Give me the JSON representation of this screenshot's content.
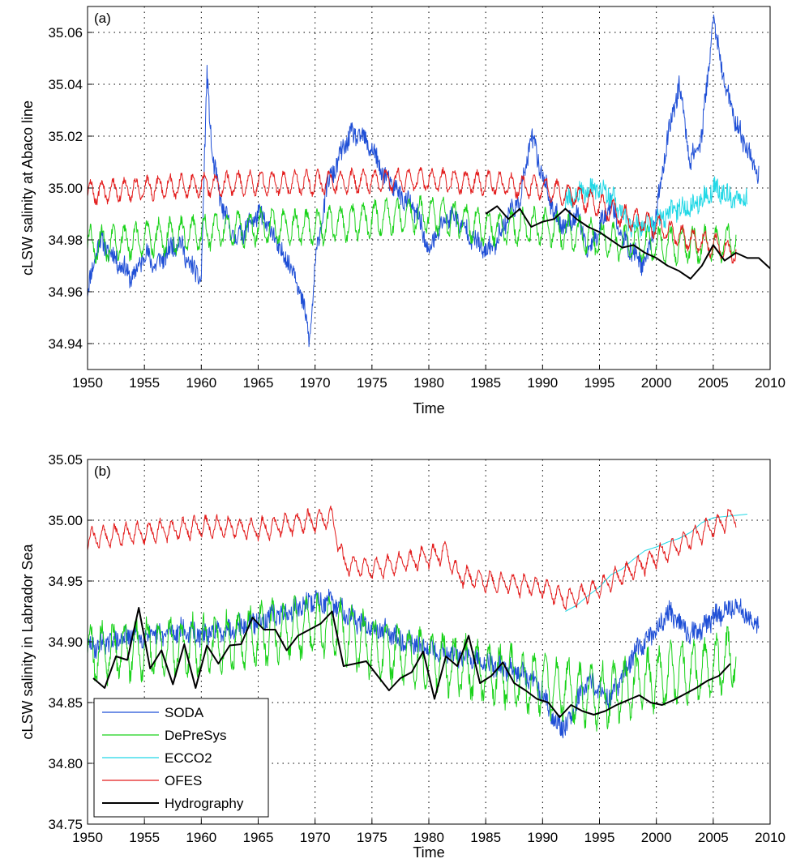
{
  "chart_data": [
    {
      "type": "line",
      "panel_label": "(a)",
      "xlabel": "Time",
      "ylabel": "cLSW salinity at Abaco line",
      "xlim": [
        1950,
        2010
      ],
      "ylim": [
        34.93,
        35.07
      ],
      "xticks": [
        "1950",
        "1955",
        "1960",
        "1965",
        "1970",
        "1975",
        "1980",
        "1985",
        "1990",
        "1995",
        "2000",
        "2005",
        "2010"
      ],
      "yticks": [
        "34.94",
        "34.96",
        "34.98",
        "35.00",
        "35.02",
        "35.04",
        "35.06"
      ],
      "grid": true,
      "series": [
        {
          "name": "SODA",
          "color": "#1f4fd6",
          "style": "noisy",
          "x": [
            1950,
            1951,
            1952,
            1953,
            1954,
            1955,
            1956,
            1957,
            1958,
            1959,
            1960,
            1960.5,
            1961,
            1962,
            1963,
            1964,
            1965,
            1966,
            1967,
            1968,
            1969,
            1969.5,
            1970,
            1971,
            1972,
            1973,
            1974,
            1975,
            1976,
            1977,
            1978,
            1979,
            1980,
            1981,
            1982,
            1983,
            1984,
            1985,
            1986,
            1987,
            1988,
            1989,
            1990,
            1991,
            1992,
            1993,
            1994,
            1995,
            1996,
            1997,
            1998,
            1999,
            2000,
            2001,
            2002,
            2003,
            2004,
            2005,
            2006,
            2007,
            2008,
            2009
          ],
          "y": [
            34.96,
            34.98,
            34.975,
            34.97,
            34.965,
            34.975,
            34.97,
            34.975,
            34.98,
            34.97,
            34.965,
            35.045,
            35.01,
            34.99,
            34.98,
            34.985,
            34.99,
            34.985,
            34.975,
            34.97,
            34.955,
            34.94,
            34.97,
            35.0,
            35.01,
            35.02,
            35.02,
            35.015,
            35.005,
            35.0,
            34.995,
            34.99,
            34.975,
            34.985,
            34.99,
            34.985,
            34.98,
            34.975,
            34.98,
            34.99,
            34.995,
            35.02,
            35.005,
            34.99,
            34.985,
            34.99,
            34.975,
            34.985,
            34.995,
            34.98,
            34.975,
            34.97,
            34.99,
            35.02,
            35.04,
            35.01,
            35.02,
            35.065,
            35.04,
            35.025,
            35.015,
            35.005
          ]
        },
        {
          "name": "DePreSys",
          "color": "#19d219",
          "style": "seasonal",
          "amp": 0.006,
          "x": [
            1950,
            1955,
            1960,
            1965,
            1970,
            1975,
            1980,
            1985,
            1990,
            1995,
            2000,
            2005,
            2007
          ],
          "y": [
            34.978,
            34.98,
            34.983,
            34.985,
            34.985,
            34.988,
            34.99,
            34.985,
            34.985,
            34.98,
            34.978,
            34.978,
            34.98
          ]
        },
        {
          "name": "ECCO2",
          "color": "#22d8e6",
          "style": "noisy",
          "x": [
            1992,
            1993,
            1994,
            1995,
            1996,
            1997,
            1998,
            1999,
            2000,
            2001,
            2002,
            2003,
            2004,
            2005,
            2006,
            2007,
            2008
          ],
          "y": [
            34.995,
            34.997,
            34.999,
            35.0,
            34.997,
            34.99,
            34.985,
            34.985,
            34.987,
            34.99,
            34.992,
            34.993,
            34.995,
            35.0,
            34.998,
            34.995,
            34.997
          ]
        },
        {
          "name": "OFES",
          "color": "#e31c1c",
          "style": "seasonal",
          "amp": 0.004,
          "x": [
            1950,
            1955,
            1960,
            1965,
            1970,
            1975,
            1980,
            1985,
            1990,
            1993,
            1995,
            1998,
            2000,
            2003,
            2005,
            2007
          ],
          "y": [
            34.998,
            35.0,
            35.001,
            35.002,
            35.002,
            35.003,
            35.003,
            35.002,
            35.0,
            34.997,
            34.993,
            34.988,
            34.985,
            34.98,
            34.978,
            34.975
          ]
        },
        {
          "name": "Hydrography",
          "color": "#000000",
          "style": "line",
          "x": [
            1985,
            1986,
            1987,
            1988,
            1989,
            1990,
            1991,
            1992,
            1993,
            1994,
            1995,
            1996,
            1997,
            1998,
            1999,
            2000,
            2001,
            2002,
            2003,
            2004,
            2005,
            2006,
            2007,
            2008,
            2009,
            2010
          ],
          "y": [
            34.99,
            34.993,
            34.988,
            34.992,
            34.985,
            34.987,
            34.988,
            34.992,
            34.988,
            34.985,
            34.983,
            34.98,
            34.977,
            34.978,
            34.975,
            34.973,
            34.97,
            34.968,
            34.965,
            34.97,
            34.978,
            34.972,
            34.975,
            34.973,
            34.973,
            34.969
          ]
        }
      ]
    },
    {
      "type": "line",
      "panel_label": "(b)",
      "xlabel": "Time",
      "ylabel": "cLSW salinity in Labrador Sea",
      "xlim": [
        1950,
        2010
      ],
      "ylim": [
        34.75,
        35.05
      ],
      "xticks": [
        "1950",
        "1955",
        "1960",
        "1965",
        "1970",
        "1975",
        "1980",
        "1985",
        "1990",
        "1995",
        "2000",
        "2005",
        "2010"
      ],
      "yticks": [
        "34.75",
        "34.80",
        "34.85",
        "34.90",
        "34.95",
        "35.00",
        "35.05"
      ],
      "grid": true,
      "legend": "lower-left",
      "series": [
        {
          "name": "SODA",
          "color": "#1f4fd6",
          "style": "noisy",
          "x": [
            1950,
            1952,
            1954,
            1956,
            1958,
            1960,
            1962,
            1964,
            1966,
            1968,
            1970,
            1972,
            1974,
            1976,
            1978,
            1980,
            1982,
            1984,
            1986,
            1988,
            1990,
            1991,
            1992,
            1993,
            1994,
            1995,
            1996,
            1997,
            1998,
            1999,
            2000,
            2001,
            2002,
            2003,
            2004,
            2005,
            2006,
            2007,
            2008,
            2009
          ],
          "y": [
            34.895,
            34.9,
            34.905,
            34.905,
            34.91,
            34.905,
            34.91,
            34.915,
            34.92,
            34.925,
            34.935,
            34.93,
            34.915,
            34.91,
            34.9,
            34.895,
            34.89,
            34.885,
            34.88,
            34.875,
            34.86,
            34.835,
            34.83,
            34.85,
            34.87,
            34.86,
            34.855,
            34.87,
            34.89,
            34.9,
            34.91,
            34.925,
            34.915,
            34.905,
            34.91,
            34.92,
            34.925,
            34.93,
            34.92,
            34.915
          ]
        },
        {
          "name": "DePreSys",
          "color": "#19d219",
          "style": "seasonal",
          "amp": 0.022,
          "x": [
            1950,
            1955,
            1960,
            1965,
            1970,
            1972,
            1975,
            1980,
            1985,
            1990,
            1995,
            2000,
            2003,
            2005,
            2007
          ],
          "y": [
            34.89,
            34.895,
            34.895,
            34.905,
            34.915,
            34.91,
            34.895,
            34.885,
            34.875,
            34.865,
            34.855,
            34.87,
            34.875,
            34.88,
            34.89
          ]
        },
        {
          "name": "ECCO2",
          "color": "#22d8e6",
          "style": "line",
          "x": [
            1992,
            1993,
            1994,
            1995,
            1996,
            1997,
            1998,
            1999,
            2000,
            2001,
            2002,
            2003,
            2004,
            2005,
            2006,
            2007,
            2008
          ],
          "y": [
            34.925,
            34.93,
            34.938,
            34.945,
            34.955,
            34.96,
            34.968,
            34.975,
            34.978,
            34.982,
            34.985,
            34.99,
            34.998,
            35.002,
            35.003,
            35.004,
            35.005
          ]
        },
        {
          "name": "OFES",
          "color": "#e31c1c",
          "style": "sawtooth",
          "amp": 0.018,
          "x": [
            1950,
            1955,
            1960,
            1965,
            1970,
            1971.5,
            1972.5,
            1975,
            1980,
            1981.5,
            1982.5,
            1985,
            1990,
            1992,
            1994,
            1996,
            1998,
            2000,
            2002,
            2004,
            2006,
            2007
          ],
          "y": [
            34.985,
            34.99,
            34.995,
            34.993,
            35.0,
            35.002,
            34.965,
            34.96,
            34.97,
            34.975,
            34.955,
            34.95,
            34.945,
            34.935,
            34.94,
            34.95,
            34.96,
            34.97,
            34.98,
            34.99,
            35.0,
            35.005
          ]
        },
        {
          "name": "Hydrography",
          "color": "#000000",
          "style": "line",
          "x": [
            1950.5,
            1951.5,
            1952.5,
            1953.5,
            1954.5,
            1955.5,
            1956.5,
            1957.5,
            1958.5,
            1959.5,
            1960.5,
            1961.5,
            1962.5,
            1963.5,
            1964.5,
            1965.5,
            1966.5,
            1967.5,
            1968.5,
            1969.5,
            1970.5,
            1971.5,
            1972.5,
            1973.5,
            1974.5,
            1975.5,
            1976.5,
            1977.5,
            1978.5,
            1979.5,
            1980.5,
            1981.5,
            1982.5,
            1983.5,
            1984.5,
            1985.5,
            1986.5,
            1987.5,
            1988.5,
            1989.5,
            1990.5,
            1991.5,
            1992.5,
            1993.5,
            1994.5,
            1995.5,
            1996.5,
            1997.5,
            1998.5,
            1999.5,
            2000.5,
            2001.5,
            2002.5,
            2003.5,
            2004.5,
            2005.5,
            2006.5
          ],
          "y": [
            34.87,
            34.862,
            34.888,
            34.885,
            34.928,
            34.878,
            34.893,
            34.865,
            34.898,
            34.862,
            34.897,
            34.882,
            34.897,
            34.898,
            34.92,
            34.91,
            34.91,
            34.893,
            34.905,
            34.91,
            34.915,
            34.925,
            34.88,
            34.882,
            34.884,
            34.872,
            34.86,
            34.87,
            34.875,
            34.892,
            34.853,
            34.888,
            34.88,
            34.905,
            34.866,
            34.872,
            34.883,
            34.866,
            34.86,
            34.853,
            34.85,
            34.838,
            34.848,
            34.843,
            34.84,
            34.843,
            34.848,
            34.852,
            34.856,
            34.85,
            34.848,
            34.852,
            34.857,
            34.862,
            34.868,
            34.872,
            34.882
          ]
        }
      ]
    }
  ]
}
